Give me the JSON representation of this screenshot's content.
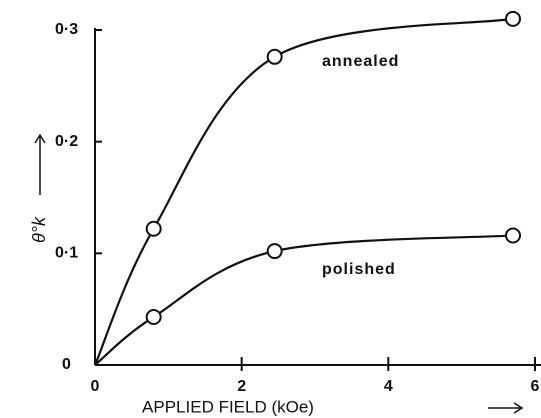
{
  "chart_data": {
    "type": "line",
    "xlabel": "APPLIED FIELD (kOe)",
    "ylabel": "θ°k",
    "x": [
      0,
      0.8,
      2.45,
      5.7
    ],
    "series": [
      {
        "name": "annealed",
        "color": "#111111",
        "values": [
          0,
          0.122,
          0.276,
          0.31
        ]
      },
      {
        "name": "polished",
        "color": "#111111",
        "values": [
          0,
          0.043,
          0.102,
          0.116
        ]
      }
    ],
    "xlim": [
      0,
      6
    ],
    "xticks": [
      0,
      2,
      4,
      6
    ],
    "ylim": [
      0,
      0.3
    ],
    "yticks": [
      {
        "value": 0,
        "label": "0"
      },
      {
        "value": 0.1,
        "label": "0·1"
      },
      {
        "value": 0.2,
        "label": "0·2"
      },
      {
        "value": 0.3,
        "label": "0·3"
      }
    ]
  }
}
